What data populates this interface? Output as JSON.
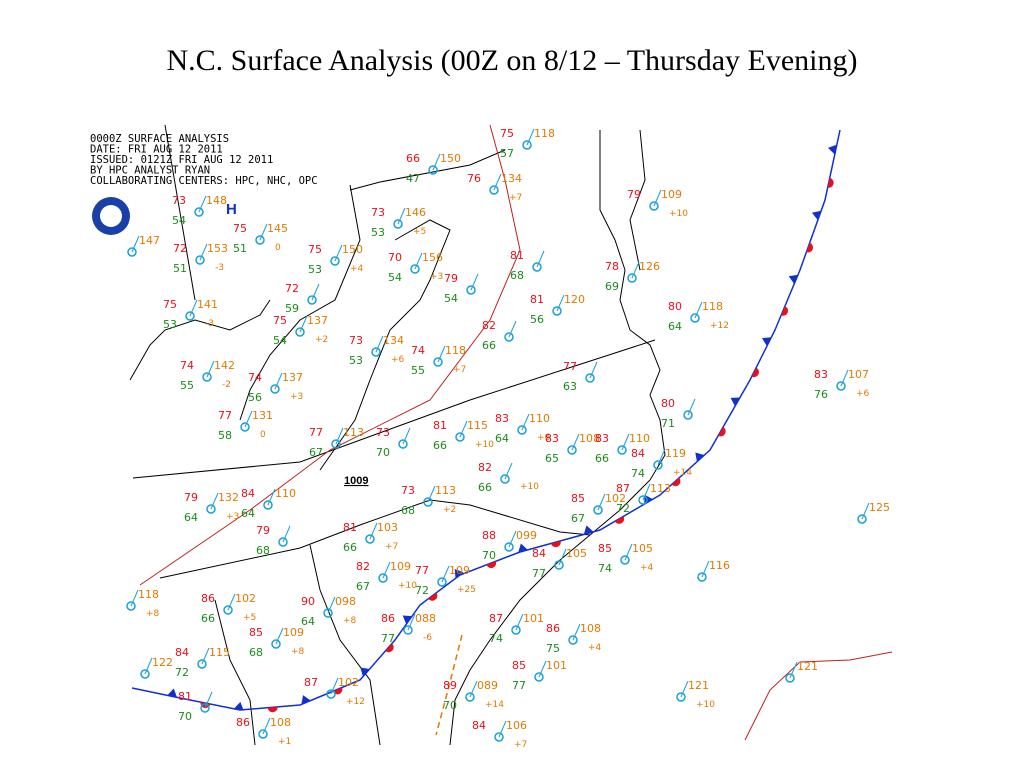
{
  "title": "N.C. Surface Analysis (00Z on 8/12 – Thursday Evening)",
  "map": {
    "header": [
      "0000Z SURFACE ANALYSIS",
      "DATE: FRI AUG 12 2011",
      "ISSUED: 0121Z FRI AUG 12 2011",
      "BY HPC ANALYST RYAN",
      "COLLABORATING CENTERS: HPC, NHC, OPC"
    ],
    "high_label": "H",
    "low_label": "1009",
    "stations": [
      {
        "temp": "73",
        "dew": "54",
        "pressure": "148"
      },
      {
        "temp": "72",
        "dew": "51",
        "pressure": "153",
        "tendency": "-3"
      },
      {
        "temp": "75",
        "dew": "51",
        "pressure": "145",
        "tendency": "0"
      },
      {
        "temp": "75",
        "dew": "53",
        "pressure": "141",
        "tendency": "-3"
      },
      {
        "temp": "74",
        "dew": "55",
        "pressure": "142",
        "tendency": "-2"
      },
      {
        "temp": "74",
        "dew": "56",
        "pressure": "137",
        "tendency": "+3"
      },
      {
        "temp": "77",
        "dew": "58",
        "pressure": "131",
        "tendency": "0"
      },
      {
        "temp": "75",
        "dew": "53",
        "pressure": "150",
        "tendency": "+4"
      },
      {
        "temp": "72",
        "dew": "59"
      },
      {
        "temp": "75",
        "dew": "54",
        "pressure": "137",
        "tendency": "+2"
      },
      {
        "temp": "73",
        "dew": "53",
        "pressure": "146",
        "tendency": "+5"
      },
      {
        "temp": "70",
        "dew": "54",
        "pressure": "156",
        "tendency": "+3"
      },
      {
        "temp": "73",
        "dew": "53",
        "pressure": "134",
        "tendency": "+6"
      },
      {
        "temp": "79",
        "dew": "54"
      },
      {
        "temp": "82",
        "dew": "66"
      },
      {
        "temp": "74",
        "dew": "55",
        "pressure": "118",
        "tendency": "+7"
      },
      {
        "temp": "77",
        "dew": "67",
        "pressure": "113"
      },
      {
        "temp": "73",
        "dew": "70"
      },
      {
        "temp": "81",
        "dew": "66",
        "pressure": "115",
        "tendency": "+10"
      },
      {
        "temp": "83",
        "dew": "64",
        "pressure": "110",
        "tendency": "+6"
      },
      {
        "temp": "83",
        "dew": "65",
        "pressure": "108"
      },
      {
        "temp": "83",
        "dew": "66",
        "pressure": "110"
      },
      {
        "temp": "82",
        "dew": "66",
        "tendency": "+10"
      },
      {
        "temp": "73",
        "dew": "68",
        "pressure": "113",
        "tendency": "+2"
      },
      {
        "temp": "79",
        "dew": "64",
        "pressure": "132",
        "tendency": "+3"
      },
      {
        "temp": "84",
        "dew": "64",
        "pressure": "110"
      },
      {
        "temp": "79",
        "dew": "68"
      },
      {
        "temp": "81",
        "dew": "66",
        "pressure": "103",
        "tendency": "+7"
      },
      {
        "temp": "82",
        "dew": "67",
        "pressure": "109",
        "tendency": "+10"
      },
      {
        "temp": "77",
        "dew": "72",
        "pressure": "109",
        "tendency": "+25"
      },
      {
        "temp": "88",
        "dew": "70",
        "pressure": "099"
      },
      {
        "temp": "84",
        "dew": "77",
        "pressure": "105"
      },
      {
        "temp": "85",
        "dew": "74",
        "pressure": "105",
        "tendency": "+4"
      },
      {
        "temp": "85",
        "dew": "67",
        "pressure": "102"
      },
      {
        "temp": "87",
        "dew": "72",
        "pressure": "113"
      },
      {
        "temp": "86",
        "dew": "66",
        "pressure": "102",
        "tendency": "+5"
      },
      {
        "temp": "90",
        "dew": "64",
        "pressure": "098",
        "tendency": "+8"
      },
      {
        "temp": "86",
        "dew": "77",
        "pressure": "088",
        "tendency": "-6"
      },
      {
        "temp": "85",
        "dew": "68",
        "pressure": "109",
        "tendency": "+8"
      },
      {
        "temp": "84",
        "dew": "72",
        "pressure": "115"
      },
      {
        "temp": "81",
        "dew": "70"
      },
      {
        "temp": "86",
        "pressure": "108",
        "tendency": "+1"
      },
      {
        "temp": "87",
        "pressure": "102",
        "tendency": "+12"
      },
      {
        "temp": "87",
        "dew": "74",
        "pressure": "101"
      },
      {
        "temp": "86",
        "dew": "75",
        "pressure": "108",
        "tendency": "+4"
      },
      {
        "temp": "85",
        "dew": "77",
        "pressure": "101"
      },
      {
        "temp": "89",
        "dew": "70",
        "pressure": "089",
        "tendency": "+14"
      },
      {
        "temp": "84",
        "pressure": "106",
        "tendency": "+7"
      },
      {
        "temp": "83",
        "dew": "76",
        "pressure": "107",
        "tendency": "+6"
      },
      {
        "temp": "80",
        "dew": "64",
        "pressure": "118",
        "tendency": "+12"
      },
      {
        "temp": "77",
        "dew": "63"
      },
      {
        "temp": "81",
        "dew": "56",
        "pressure": "120"
      },
      {
        "temp": "81",
        "dew": "68"
      },
      {
        "temp": "66",
        "dew": "47",
        "pressure": "150"
      },
      {
        "temp": "76",
        "pressure": "134",
        "tendency": "+7"
      },
      {
        "temp": "75",
        "dew": "57",
        "pressure": "118"
      },
      {
        "temp": "80",
        "dew": "71"
      },
      {
        "temp": "84",
        "dew": "74",
        "pressure": "119",
        "tendency": "+14"
      },
      {
        "temp": "78",
        "dew": "69",
        "pressure": "126"
      },
      {
        "temp": "79",
        "pressure": "109",
        "tendency": "+10"
      },
      {
        "pressure": "125"
      },
      {
        "pressure": "116"
      },
      {
        "pressure": "121"
      },
      {
        "pressure": "121",
        "tendency": "+10"
      },
      {
        "pressure": "118",
        "tendency": "+8"
      },
      {
        "pressure": "122"
      },
      {
        "pressure": "147"
      }
    ]
  }
}
